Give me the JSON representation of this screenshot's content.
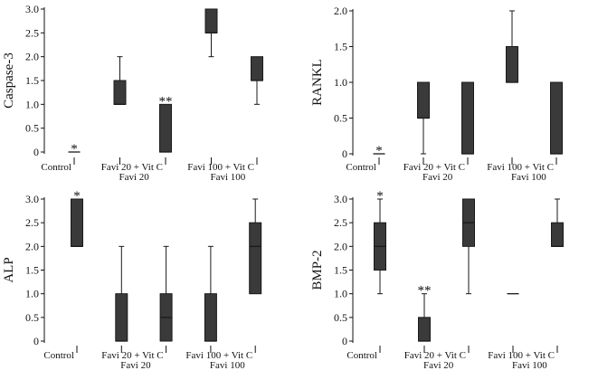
{
  "chart_data": [
    {
      "type": "boxplot",
      "ylabel": "Caspase-3",
      "ylim": [
        0,
        3
      ],
      "yticks": [
        "0",
        "0.5",
        "1.0",
        "1.5",
        "2.0",
        "2.5",
        "3.0"
      ],
      "categories": [
        "Control",
        "Favi 20",
        "Favi 20 + Vit C",
        "Favi 100",
        "Favi 100 + Vit C"
      ],
      "box_color": "#3a3a3a",
      "boxes": [
        {
          "min": 0,
          "q1": 0,
          "median": 0,
          "q3": 0,
          "max": 0,
          "annotation": "*"
        },
        {
          "min": 1.0,
          "q1": 1.0,
          "median": 1.0,
          "q3": 1.5,
          "max": 2.0,
          "annotation": ""
        },
        {
          "min": 0,
          "q1": 0,
          "median": 0,
          "q3": 1.0,
          "max": 1.0,
          "annotation": "**"
        },
        {
          "min": 2.0,
          "q1": 2.5,
          "median": 2.5,
          "q3": 3.0,
          "max": 3.0,
          "annotation": ""
        },
        {
          "min": 1.0,
          "q1": 1.5,
          "median": 1.5,
          "q3": 2.0,
          "max": 2.0,
          "annotation": ""
        }
      ]
    },
    {
      "type": "boxplot",
      "ylabel": "RANKL",
      "ylim": [
        0,
        2
      ],
      "yticks": [
        "0",
        "0.5",
        "1.0",
        "1.5",
        "2.0"
      ],
      "categories": [
        "Control",
        "Favi 20",
        "Favi 20 + Vit C",
        "Favi 100",
        "Favi 100 + Vit C"
      ],
      "box_color": "#3a3a3a",
      "boxes": [
        {
          "min": 0,
          "q1": 0,
          "median": 0,
          "q3": 0,
          "max": 0,
          "annotation": "*"
        },
        {
          "min": 0,
          "q1": 0.5,
          "median": 0.5,
          "q3": 1.0,
          "max": 1.0,
          "annotation": ""
        },
        {
          "min": 0,
          "q1": 0,
          "median": 0,
          "q3": 1.0,
          "max": 1.0,
          "annotation": ""
        },
        {
          "min": 1.0,
          "q1": 1.0,
          "median": 1.0,
          "q3": 1.5,
          "max": 2.0,
          "annotation": ""
        },
        {
          "min": 0,
          "q1": 0,
          "median": 0,
          "q3": 1.0,
          "max": 1.0,
          "annotation": ""
        }
      ]
    },
    {
      "type": "boxplot",
      "ylabel": "ALP",
      "ylim": [
        0,
        3
      ],
      "yticks": [
        "0",
        "0.5",
        "1.0",
        "1.5",
        "2.0",
        "2.5",
        "3.0"
      ],
      "categories": [
        "Control",
        "Favi 20",
        "Favi 20 + Vit C",
        "Favi 100",
        "Favi 100 + Vit C"
      ],
      "box_color": "#3a3a3a",
      "boxes": [
        {
          "min": 2.0,
          "q1": 2.0,
          "median": 2.0,
          "q3": 3.0,
          "max": 3.0,
          "annotation": "*"
        },
        {
          "min": 0,
          "q1": 0,
          "median": 0,
          "q3": 1.0,
          "max": 2.0,
          "annotation": ""
        },
        {
          "min": 0,
          "q1": 0,
          "median": 0.5,
          "q3": 1.0,
          "max": 2.0,
          "annotation": ""
        },
        {
          "min": 0,
          "q1": 0,
          "median": 0,
          "q3": 1.0,
          "max": 2.0,
          "annotation": ""
        },
        {
          "min": 1.0,
          "q1": 1.0,
          "median": 2.0,
          "q3": 2.5,
          "max": 3.0,
          "annotation": ""
        }
      ]
    },
    {
      "type": "boxplot",
      "ylabel": "BMP-2",
      "ylim": [
        0,
        3
      ],
      "yticks": [
        "0",
        "0.5",
        "1.0",
        "1.5",
        "2.0",
        "2.5",
        "3.0"
      ],
      "categories": [
        "Control",
        "Favi 20",
        "Favi 20 + Vit C",
        "Favi 100",
        "Favi 100 + Vit C"
      ],
      "box_color": "#3a3a3a",
      "boxes": [
        {
          "min": 1.0,
          "q1": 1.5,
          "median": 2.0,
          "q3": 2.5,
          "max": 3.0,
          "annotation": "*"
        },
        {
          "min": 0,
          "q1": 0,
          "median": 0,
          "q3": 0.5,
          "max": 1.0,
          "annotation": "**"
        },
        {
          "min": 1.0,
          "q1": 2.0,
          "median": 2.5,
          "q3": 3.0,
          "max": 3.0,
          "annotation": ""
        },
        {
          "min": 1.0,
          "q1": 1.0,
          "median": 1.0,
          "q3": 1.0,
          "max": 1.0,
          "annotation": ""
        },
        {
          "min": 2.0,
          "q1": 2.0,
          "median": 2.0,
          "q3": 2.5,
          "max": 3.0,
          "annotation": ""
        }
      ]
    }
  ]
}
